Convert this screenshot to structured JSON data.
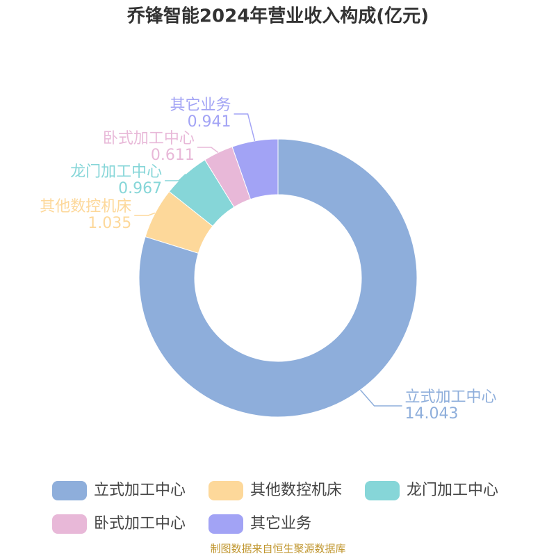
{
  "chart_data": {
    "type": "pie",
    "title": "乔锋智能2024年营业收入构成(亿元)",
    "categories": [
      "立式加工中心",
      "其他数控机床",
      "龙门加工中心",
      "卧式加工中心",
      "其它业务"
    ],
    "values": [
      14.043,
      1.035,
      0.967,
      0.611,
      0.941
    ],
    "colors": [
      "#8eaedb",
      "#fdd89a",
      "#86d6d8",
      "#e8b8d8",
      "#a2a3f5"
    ],
    "source": "制图数据来自恒生聚源数据库"
  }
}
